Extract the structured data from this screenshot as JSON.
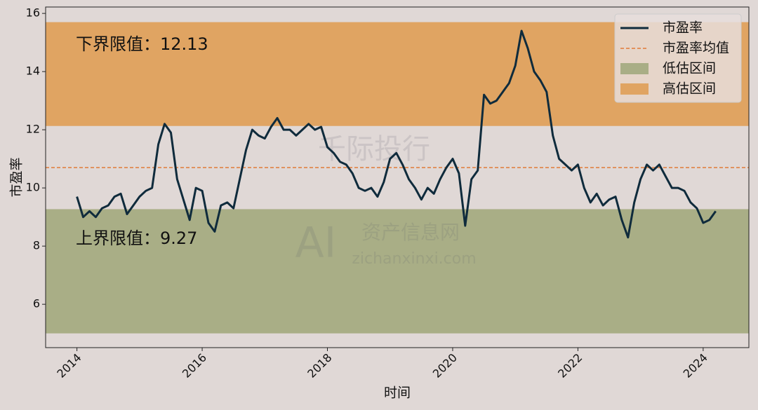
{
  "chart_data": {
    "type": "line",
    "xlabel": "时间",
    "ylabel": "市盈率",
    "xlim": [
      2013.5,
      2024.73
    ],
    "xticks": [
      2014,
      2016,
      2018,
      2020,
      2022,
      2024
    ],
    "ylim": [
      4.51,
      16.22
    ],
    "yticks": [
      6,
      8,
      10,
      12,
      14,
      16
    ],
    "x": [
      2014.0,
      2014.1,
      2014.2,
      2014.3,
      2014.4,
      2014.5,
      2014.6,
      2014.7,
      2014.8,
      2014.9,
      2015.0,
      2015.1,
      2015.2,
      2015.3,
      2015.4,
      2015.5,
      2015.6,
      2015.7,
      2015.8,
      2015.9,
      2016.0,
      2016.1,
      2016.2,
      2016.3,
      2016.4,
      2016.5,
      2016.6,
      2016.7,
      2016.8,
      2016.9,
      2017.0,
      2017.1,
      2017.2,
      2017.3,
      2017.4,
      2017.5,
      2017.6,
      2017.7,
      2017.8,
      2017.9,
      2018.0,
      2018.1,
      2018.2,
      2018.3,
      2018.4,
      2018.5,
      2018.6,
      2018.7,
      2018.8,
      2018.9,
      2019.0,
      2019.1,
      2019.2,
      2019.3,
      2019.4,
      2019.5,
      2019.6,
      2019.7,
      2019.8,
      2019.9,
      2020.0,
      2020.1,
      2020.2,
      2020.3,
      2020.4,
      2020.5,
      2020.6,
      2020.7,
      2020.8,
      2020.9,
      2021.0,
      2021.1,
      2021.2,
      2021.3,
      2021.4,
      2021.5,
      2021.6,
      2021.7,
      2021.8,
      2021.9,
      2022.0,
      2022.1,
      2022.2,
      2022.3,
      2022.4,
      2022.5,
      2022.6,
      2022.7,
      2022.8,
      2022.9,
      2023.0,
      2023.1,
      2023.2,
      2023.3,
      2023.4,
      2023.5,
      2023.6,
      2023.7,
      2023.8,
      2023.9,
      2024.0,
      2024.1,
      2024.2
    ],
    "series": [
      {
        "name": "市盈率",
        "color": "#0f2b3c",
        "values": [
          9.7,
          9.0,
          9.2,
          9.0,
          9.3,
          9.4,
          9.7,
          9.8,
          9.1,
          9.4,
          9.7,
          9.9,
          10.0,
          11.5,
          12.2,
          11.9,
          10.3,
          9.6,
          8.9,
          10.0,
          9.9,
          8.8,
          8.5,
          9.4,
          9.5,
          9.3,
          10.3,
          11.3,
          12.0,
          11.8,
          11.7,
          12.1,
          12.4,
          12.0,
          12.0,
          11.8,
          12.0,
          12.2,
          12.0,
          12.1,
          11.4,
          11.2,
          10.9,
          10.8,
          10.5,
          10.0,
          9.9,
          10.0,
          9.7,
          10.2,
          11.0,
          11.2,
          10.8,
          10.3,
          10.0,
          9.6,
          10.0,
          9.8,
          10.3,
          10.7,
          11.0,
          10.5,
          8.7,
          10.3,
          10.6,
          13.2,
          12.9,
          13.0,
          13.3,
          13.6,
          14.2,
          15.4,
          14.8,
          14.0,
          13.7,
          13.3,
          11.8,
          11.0,
          10.8,
          10.6,
          10.8,
          10.0,
          9.5,
          9.8,
          9.4,
          9.6,
          9.7,
          8.9,
          8.3,
          9.5,
          10.3,
          10.8,
          10.6,
          10.8,
          10.4,
          10.0,
          10.0,
          9.9,
          9.5,
          9.3,
          8.8,
          8.9,
          9.2
        ]
      }
    ],
    "mean_line": {
      "name": "市盈率均值",
      "value": 10.7,
      "color": "#e07b39"
    },
    "bands": [
      {
        "name": "低估区间",
        "range": [
          5.0,
          9.27
        ],
        "color": "#a9ae86"
      },
      {
        "name": "高估区间",
        "range": [
          12.13,
          15.7
        ],
        "color": "#e0a462"
      }
    ],
    "annotations": [
      "下界限值：12.13",
      "上界限值：9.27"
    ],
    "watermark": [
      "千际投行",
      "AI",
      "资产信息网",
      "zichanxinxi.com"
    ],
    "legend": "upper right"
  }
}
